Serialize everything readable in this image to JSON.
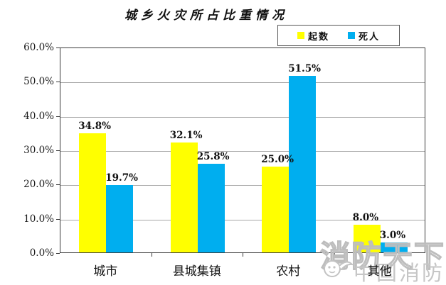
{
  "chart_data": {
    "type": "bar",
    "title": "城乡火灾所占比重情况",
    "categories": [
      "城市",
      "县城集镇",
      "农村",
      "其他"
    ],
    "series": [
      {
        "name": "起数",
        "color": "#FFFF00",
        "values": [
          34.8,
          32.1,
          25.0,
          8.0
        ]
      },
      {
        "name": "死人",
        "color": "#00AEEF",
        "values": [
          19.7,
          25.8,
          51.5,
          3.0
        ]
      }
    ],
    "xlabel": "",
    "ylabel": "",
    "ylim": [
      0,
      60
    ],
    "ytick_step": 10,
    "ytick_labels": [
      "0.0%",
      "10.0%",
      "20.0%",
      "30.0%",
      "40.0%",
      "50.0%",
      "60.0%"
    ],
    "value_label_suffix": "%",
    "grid": true,
    "legend_position": "top-right"
  },
  "watermark": {
    "line1": "消防天下",
    "line2": "中国消防"
  },
  "colors": {
    "grid": "#a8a8a8",
    "axis_border": "#3a3a3a",
    "text": "#111111",
    "watermark": "#c3c3c3"
  }
}
